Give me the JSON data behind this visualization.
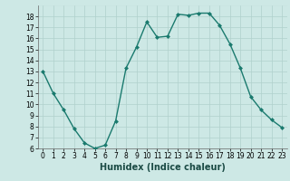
{
  "x": [
    0,
    1,
    2,
    3,
    4,
    5,
    6,
    7,
    8,
    9,
    10,
    11,
    12,
    13,
    14,
    15,
    16,
    17,
    18,
    19,
    20,
    21,
    22,
    23
  ],
  "y": [
    13,
    11,
    9.5,
    7.8,
    6.5,
    6.0,
    6.3,
    8.5,
    13.3,
    15.2,
    17.5,
    16.1,
    16.2,
    18.2,
    18.1,
    18.3,
    18.3,
    17.2,
    15.5,
    13.3,
    10.7,
    9.5,
    8.6,
    7.9
  ],
  "line_color": "#1a7a6e",
  "marker": "D",
  "marker_size": 2,
  "bg_color": "#cde8e5",
  "grid_major_color": "#b0d0cc",
  "grid_minor_color": "#c0dcda",
  "xlabel": "Humidex (Indice chaleur)",
  "ylim": [
    6,
    19
  ],
  "xlim": [
    -0.5,
    23.5
  ],
  "yticks": [
    6,
    7,
    8,
    9,
    10,
    11,
    12,
    13,
    14,
    15,
    16,
    17,
    18
  ],
  "xticks": [
    0,
    1,
    2,
    3,
    4,
    5,
    6,
    7,
    8,
    9,
    10,
    11,
    12,
    13,
    14,
    15,
    16,
    17,
    18,
    19,
    20,
    21,
    22,
    23
  ],
  "xlabel_fontsize": 7,
  "tick_fontsize": 5.5
}
